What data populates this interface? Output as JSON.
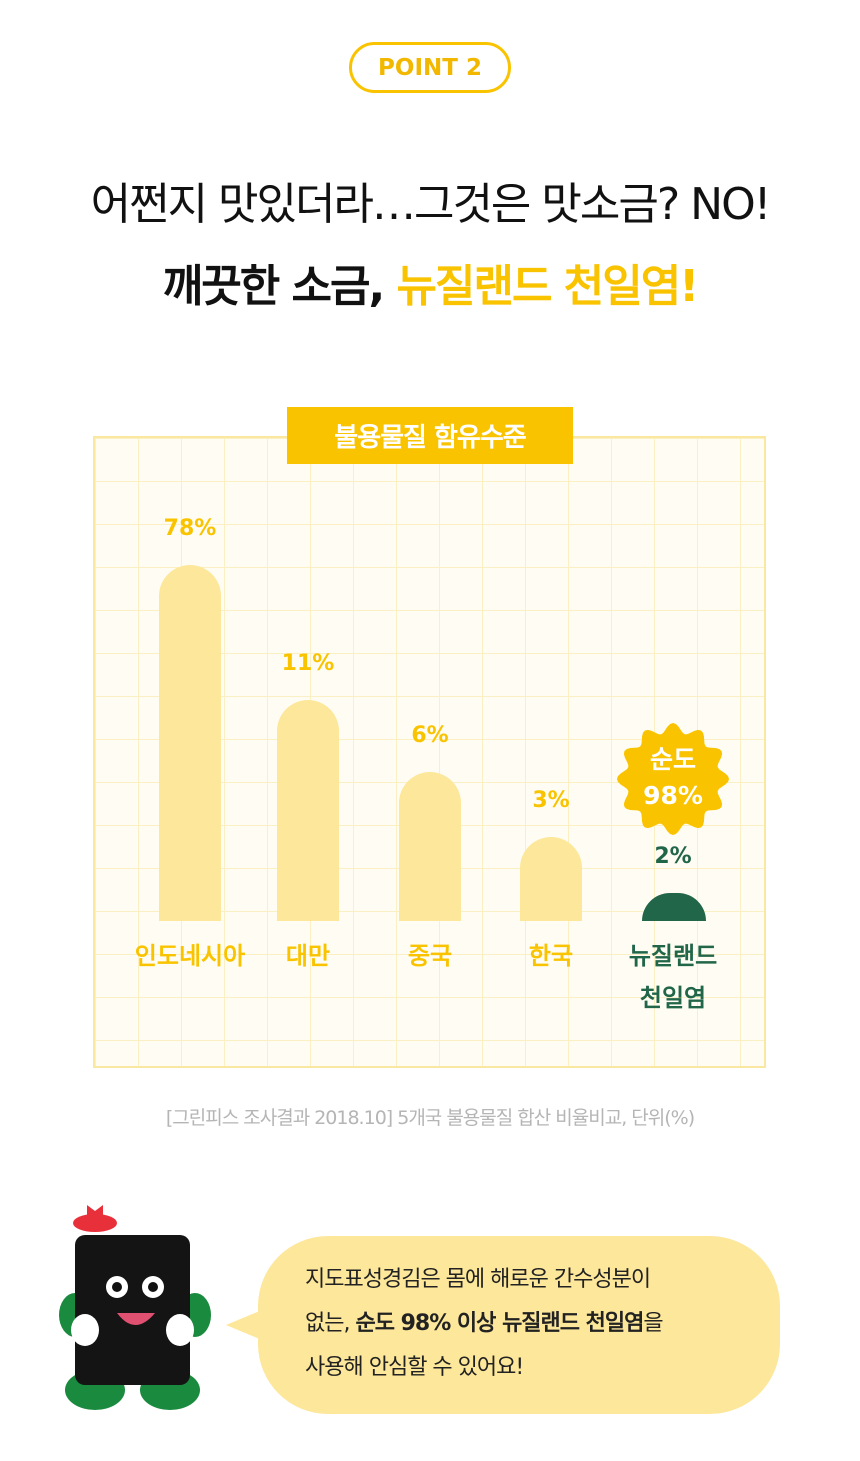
{
  "badge_point": "POINT 2",
  "headline": "어쩐지 맛있더라…그것은 맛소금? NO!",
  "subheadline": {
    "black": "깨끗한 소금, ",
    "yellow": "뉴질랜드 천일염!"
  },
  "chart_data": {
    "type": "bar",
    "title": "불용물질 함유수준",
    "categories": [
      "인도네시아",
      "대만",
      "중국",
      "한국",
      "뉴질랜드 천일염"
    ],
    "values": [
      78,
      11,
      6,
      3,
      2
    ],
    "value_labels": [
      "78%",
      "11%",
      "6%",
      "3%",
      "2%"
    ],
    "unit": "%",
    "grid": true,
    "colors": {
      "bar": "#fde79a",
      "highlight": "#22664a",
      "accent": "#f9c300"
    },
    "highlight_badge": {
      "line1": "순도",
      "line2": "98%"
    }
  },
  "last_cat": {
    "line1": "뉴질랜드",
    "line2": "천일염"
  },
  "source_note": "[그린피스 조사결과 2018.10] 5개국 불용물질 합산 비율비교, 단위(%)",
  "speech": {
    "line1": "지도표성경김은 몸에 해로운 간수성분이",
    "line2_pre": "없는, ",
    "line2_bold": "순도 98% 이상 뉴질랜드 천일염",
    "line2_post": "을",
    "line3": "사용해 안심할 수 있어요!"
  },
  "mascot_icon": "seaweed-mascot"
}
